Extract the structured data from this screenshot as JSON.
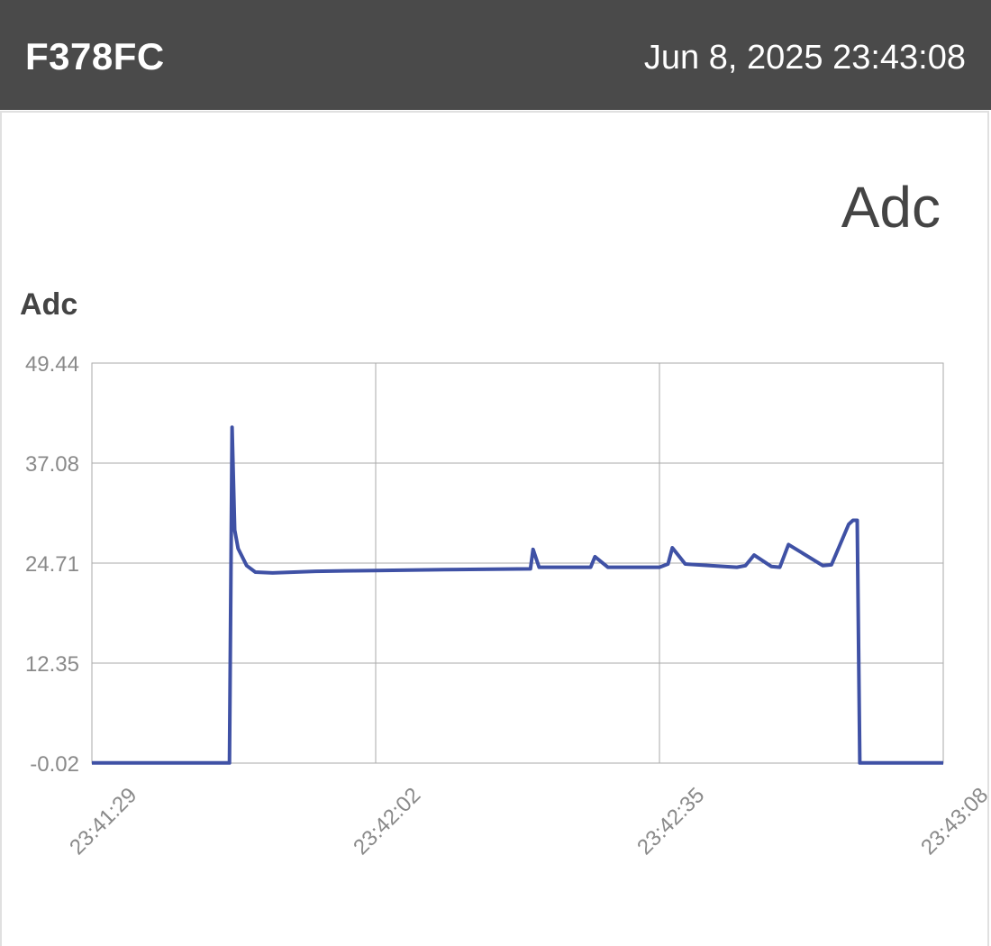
{
  "header": {
    "device_id": "F378FC",
    "timestamp": "Jun 8, 2025 23:43:08"
  },
  "card": {
    "title": "Adc"
  },
  "colors": {
    "header_bg": "#4a4a4a",
    "line": "#3f51a5",
    "grid": "#aaaaaa"
  },
  "chart_data": {
    "type": "line",
    "title": "",
    "ylabel": "Adc",
    "ylim": [
      -0.02,
      49.44
    ],
    "y_ticks": [
      "49.44",
      "37.08",
      "24.71",
      "12.35",
      "-0.02"
    ],
    "x_ticks": [
      "23:41:29",
      "23:42:02",
      "23:42:35",
      "23:43:08"
    ],
    "xlim": [
      "23:41:29",
      "23:43:08"
    ],
    "grid": true,
    "series": [
      {
        "x": [
          "23:41:29",
          "23:41:45",
          "23:41:45.3",
          "23:41:45.6",
          "23:41:46",
          "23:41:47",
          "23:41:48",
          "23:41:50",
          "23:41:55",
          "23:42:02",
          "23:42:10",
          "23:42:20",
          "23:42:20.3",
          "23:42:21",
          "23:42:27",
          "23:42:27.5",
          "23:42:29",
          "23:42:35",
          "23:42:36",
          "23:42:36.5",
          "23:42:38",
          "23:42:44",
          "23:42:45",
          "23:42:46",
          "23:42:48",
          "23:42:49",
          "23:42:50",
          "23:42:54",
          "23:42:55",
          "23:42:56",
          "23:42:57",
          "23:42:57.5",
          "23:42:58",
          "23:42:58.3",
          "23:42:58.5",
          "23:43:08"
        ],
        "y": [
          0,
          0,
          41.5,
          28.8,
          26.5,
          24.4,
          23.6,
          23.5,
          23.7,
          23.8,
          23.9,
          24.0,
          26.4,
          24.2,
          24.2,
          25.5,
          24.2,
          24.2,
          24.6,
          26.6,
          24.6,
          24.2,
          24.4,
          25.7,
          24.3,
          24.2,
          27.0,
          24.4,
          24.5,
          27.0,
          29.5,
          30.0,
          30.0,
          0,
          0,
          0
        ]
      }
    ]
  }
}
